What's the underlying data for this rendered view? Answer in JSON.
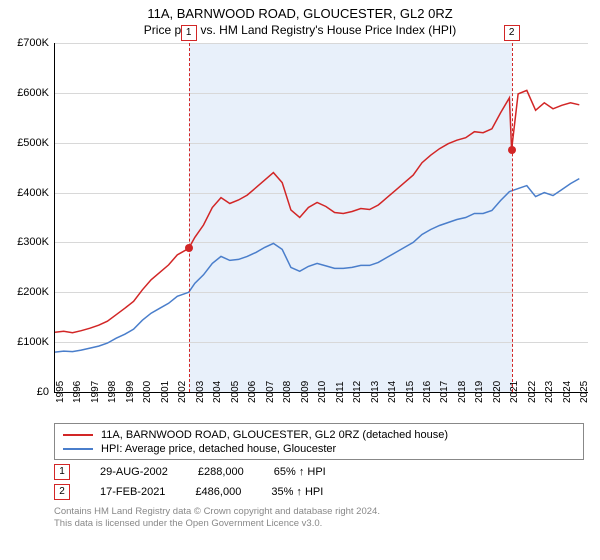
{
  "title": "11A, BARNWOOD ROAD, GLOUCESTER, GL2 0RZ",
  "subtitle": "Price paid vs. HM Land Registry's House Price Index (HPI)",
  "chart": {
    "type": "line",
    "background_color": "#ffffff",
    "grid_color": "#d8d8d8",
    "shade_color": "#e8f0fa",
    "line_width": 1.5,
    "y": {
      "min": 0,
      "max": 700000,
      "ticks": [
        0,
        100000,
        200000,
        300000,
        400000,
        500000,
        600000,
        700000
      ],
      "tick_labels": [
        "£0",
        "£100K",
        "£200K",
        "£300K",
        "£400K",
        "£500K",
        "£600K",
        "£700K"
      ],
      "label_fontsize": 11
    },
    "x": {
      "min": 1995,
      "max": 2025.5,
      "ticks": [
        1995,
        1996,
        1997,
        1998,
        1999,
        2000,
        2001,
        2002,
        2003,
        2004,
        2005,
        2006,
        2007,
        2008,
        2009,
        2010,
        2011,
        2012,
        2013,
        2014,
        2015,
        2016,
        2017,
        2018,
        2019,
        2020,
        2021,
        2022,
        2023,
        2024,
        2025
      ],
      "tick_fontsize": 10
    },
    "shade_range": [
      2002.65,
      2021.13
    ],
    "markers": [
      {
        "n": "1",
        "x": 2002.65,
        "price": 288000
      },
      {
        "n": "2",
        "x": 2021.13,
        "price": 486000
      }
    ],
    "series": [
      {
        "name": "property",
        "label": "11A, BARNWOOD ROAD, GLOUCESTER, GL2 0RZ (detached house)",
        "color": "#d22626",
        "data": [
          [
            1995,
            120000
          ],
          [
            1995.5,
            122000
          ],
          [
            1996,
            119000
          ],
          [
            1996.5,
            123000
          ],
          [
            1997,
            128000
          ],
          [
            1997.5,
            134000
          ],
          [
            1998,
            142000
          ],
          [
            1998.5,
            155000
          ],
          [
            1999,
            168000
          ],
          [
            1999.5,
            182000
          ],
          [
            2000,
            205000
          ],
          [
            2000.5,
            225000
          ],
          [
            2001,
            240000
          ],
          [
            2001.5,
            255000
          ],
          [
            2002,
            275000
          ],
          [
            2002.65,
            288000
          ],
          [
            2003,
            310000
          ],
          [
            2003.5,
            335000
          ],
          [
            2004,
            370000
          ],
          [
            2004.5,
            390000
          ],
          [
            2005,
            378000
          ],
          [
            2005.5,
            385000
          ],
          [
            2006,
            395000
          ],
          [
            2006.5,
            410000
          ],
          [
            2007,
            425000
          ],
          [
            2007.5,
            440000
          ],
          [
            2008,
            420000
          ],
          [
            2008.5,
            365000
          ],
          [
            2009,
            350000
          ],
          [
            2009.5,
            370000
          ],
          [
            2010,
            380000
          ],
          [
            2010.5,
            372000
          ],
          [
            2011,
            360000
          ],
          [
            2011.5,
            358000
          ],
          [
            2012,
            362000
          ],
          [
            2012.5,
            368000
          ],
          [
            2013,
            366000
          ],
          [
            2013.5,
            375000
          ],
          [
            2014,
            390000
          ],
          [
            2014.5,
            405000
          ],
          [
            2015,
            420000
          ],
          [
            2015.5,
            435000
          ],
          [
            2016,
            460000
          ],
          [
            2016.5,
            475000
          ],
          [
            2017,
            488000
          ],
          [
            2017.5,
            498000
          ],
          [
            2018,
            505000
          ],
          [
            2018.5,
            510000
          ],
          [
            2019,
            522000
          ],
          [
            2019.5,
            520000
          ],
          [
            2020,
            528000
          ],
          [
            2020.5,
            560000
          ],
          [
            2021,
            590000
          ],
          [
            2021.13,
            486000
          ],
          [
            2021.5,
            598000
          ],
          [
            2022,
            605000
          ],
          [
            2022.5,
            565000
          ],
          [
            2023,
            580000
          ],
          [
            2023.5,
            568000
          ],
          [
            2024,
            575000
          ],
          [
            2024.5,
            580000
          ],
          [
            2025,
            576000
          ]
        ]
      },
      {
        "name": "hpi",
        "label": "HPI: Average price, detached house, Gloucester",
        "color": "#4a7ecb",
        "data": [
          [
            1995,
            80000
          ],
          [
            1995.5,
            82000
          ],
          [
            1996,
            81000
          ],
          [
            1996.5,
            84000
          ],
          [
            1997,
            88000
          ],
          [
            1997.5,
            92000
          ],
          [
            1998,
            98000
          ],
          [
            1998.5,
            108000
          ],
          [
            1999,
            116000
          ],
          [
            1999.5,
            126000
          ],
          [
            2000,
            144000
          ],
          [
            2000.5,
            158000
          ],
          [
            2001,
            168000
          ],
          [
            2001.5,
            178000
          ],
          [
            2002,
            192000
          ],
          [
            2002.65,
            200000
          ],
          [
            2003,
            218000
          ],
          [
            2003.5,
            235000
          ],
          [
            2004,
            258000
          ],
          [
            2004.5,
            272000
          ],
          [
            2005,
            264000
          ],
          [
            2005.5,
            266000
          ],
          [
            2006,
            272000
          ],
          [
            2006.5,
            280000
          ],
          [
            2007,
            290000
          ],
          [
            2007.5,
            298000
          ],
          [
            2008,
            286000
          ],
          [
            2008.5,
            250000
          ],
          [
            2009,
            242000
          ],
          [
            2009.5,
            252000
          ],
          [
            2010,
            258000
          ],
          [
            2010.5,
            253000
          ],
          [
            2011,
            248000
          ],
          [
            2011.5,
            248000
          ],
          [
            2012,
            250000
          ],
          [
            2012.5,
            254000
          ],
          [
            2013,
            254000
          ],
          [
            2013.5,
            260000
          ],
          [
            2014,
            270000
          ],
          [
            2014.5,
            280000
          ],
          [
            2015,
            290000
          ],
          [
            2015.5,
            300000
          ],
          [
            2016,
            316000
          ],
          [
            2016.5,
            326000
          ],
          [
            2017,
            334000
          ],
          [
            2017.5,
            340000
          ],
          [
            2018,
            346000
          ],
          [
            2018.5,
            350000
          ],
          [
            2019,
            358000
          ],
          [
            2019.5,
            358000
          ],
          [
            2020,
            364000
          ],
          [
            2020.5,
            384000
          ],
          [
            2021,
            402000
          ],
          [
            2021.5,
            408000
          ],
          [
            2022,
            414000
          ],
          [
            2022.5,
            392000
          ],
          [
            2023,
            400000
          ],
          [
            2023.5,
            394000
          ],
          [
            2024,
            406000
          ],
          [
            2024.5,
            418000
          ],
          [
            2025,
            428000
          ]
        ]
      }
    ]
  },
  "sales": [
    {
      "n": "1",
      "date": "29-AUG-2002",
      "price": "£288,000",
      "vs_hpi": "65% ↑ HPI"
    },
    {
      "n": "2",
      "date": "17-FEB-2021",
      "price": "£486,000",
      "vs_hpi": "35% ↑ HPI"
    }
  ],
  "attribution": {
    "line1": "Contains HM Land Registry data © Crown copyright and database right 2024.",
    "line2": "This data is licensed under the Open Government Licence v3.0."
  }
}
